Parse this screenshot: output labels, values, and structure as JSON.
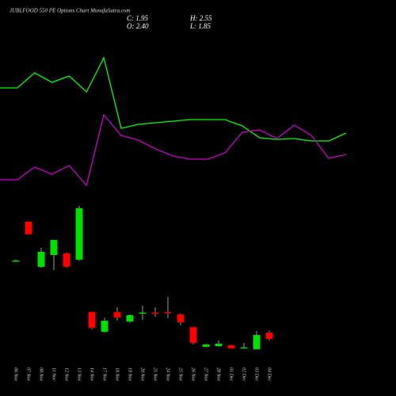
{
  "chart_data": {
    "type": "candlestick",
    "title": "JUBLFOOD 550 PE Options Chart MunafaSutra.com",
    "info": [
      "C: 1.95",
      "H: 2.55",
      "O: 2.40",
      "L: 1.85"
    ],
    "categories": [
      "06 Nov",
      "07 Nov",
      "08 Nov",
      "11 Nov",
      "12 Nov",
      "13 Nov",
      "14 Nov",
      "17 Nov",
      "18 Nov",
      "19 Nov",
      "20 Nov",
      "21 Nov",
      "24 Nov",
      "25 Nov",
      "26 Nov",
      "27 Nov",
      "28 Nov",
      "01 Dec",
      "02 Dec",
      "03 Dec",
      "04 Dec"
    ],
    "open": [
      7.5,
      10.28,
      7.07,
      7.91,
      8.03,
      7.58,
      3.86,
      2.46,
      3.86,
      3.19,
      3.8,
      3.82,
      3.86,
      3.69,
      2.79,
      1.39,
      1.44,
      1.5,
      1.33,
      1.22,
      2.4
    ],
    "high": [
      7.6,
      10.3,
      8.42,
      8.98,
      8.1,
      11.4,
      3.9,
      3.47,
      4.2,
      3.7,
      4.31,
      4.2,
      4.93,
      3.75,
      2.8,
      1.6,
      1.84,
      1.55,
      1.67,
      2.51,
      2.55
    ],
    "low": [
      7.45,
      9.35,
      7.01,
      6.84,
      7.0,
      7.5,
      2.63,
      2.4,
      3.24,
      3.1,
      3.3,
      3.53,
      3.41,
      2.91,
      1.56,
      1.35,
      1.4,
      1.25,
      1.3,
      1.2,
      1.85
    ],
    "close": [
      7.52,
      9.38,
      8.14,
      8.98,
      7.07,
      11.23,
      2.74,
      3.24,
      3.47,
      3.64,
      3.82,
      3.78,
      3.8,
      3.13,
      1.67,
      1.56,
      1.61,
      1.28,
      1.35,
      2.23,
      1.95
    ],
    "up_color": "#00e000",
    "down_color": "#ff0000",
    "ylim": [
      0.71,
      11.96
    ],
    "line_ylim": [
      0,
      300
    ],
    "lines": [
      {
        "color": "#00ff00",
        "values": [
          189,
          189,
          208,
          196,
          204,
          184,
          227,
          138,
          143,
          145,
          147,
          149,
          149,
          149,
          141,
          126,
          124,
          125,
          122,
          122,
          132
        ]
      },
      {
        "color": "#cc00cc",
        "values": [
          73,
          73,
          89,
          80,
          91,
          66,
          155,
          129,
          123,
          112,
          103,
          99,
          99,
          107,
          133,
          136,
          125,
          142,
          129,
          100,
          105
        ]
      }
    ]
  }
}
